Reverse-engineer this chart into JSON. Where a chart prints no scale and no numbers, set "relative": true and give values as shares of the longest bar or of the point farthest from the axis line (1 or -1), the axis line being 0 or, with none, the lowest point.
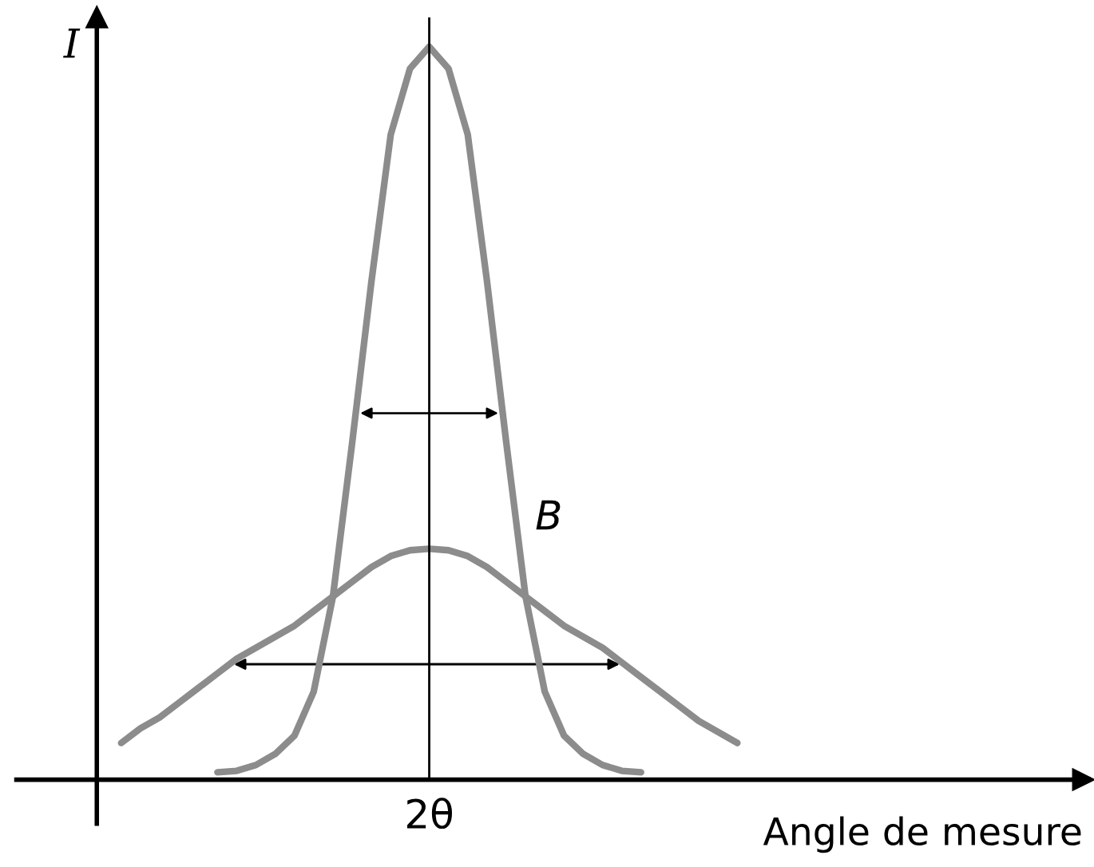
{
  "chart_data": {
    "type": "line",
    "relative": true,
    "xlabel": "Angle de mesure",
    "ylabel": "I",
    "categories": [
      null,
      null,
      null,
      null,
      null,
      null,
      null,
      null,
      null,
      null,
      null,
      null,
      null,
      null,
      null,
      null,
      null,
      null,
      null,
      null,
      null,
      null,
      null,
      null,
      null,
      null,
      null,
      null,
      null,
      null,
      null,
      null,
      null
    ],
    "series": [
      {
        "color": "#8c8c8c",
        "values": [
          null,
          null,
          null,
          null,
          null,
          0.01,
          0.012,
          0.02,
          0.035,
          0.06,
          0.12,
          0.25,
          0.46,
          0.68,
          0.88,
          0.97,
          1.0,
          0.97,
          0.88,
          0.68,
          0.46,
          0.25,
          0.12,
          0.06,
          0.035,
          0.02,
          0.012,
          0.01,
          null,
          null,
          null,
          null,
          null
        ]
      },
      {
        "color": "#8c8c8c",
        "values": [
          0.05,
          0.07,
          0.085,
          0.105,
          0.125,
          0.145,
          0.165,
          0.18,
          0.195,
          0.21,
          0.23,
          0.25,
          0.27,
          0.29,
          0.305,
          0.313,
          0.315,
          0.313,
          0.305,
          0.29,
          0.27,
          0.25,
          0.23,
          0.21,
          0.195,
          0.18,
          0.16,
          0.14,
          0.12,
          0.1,
          0.08,
          0.065,
          0.05
        ]
      }
    ],
    "annotations": [
      "2θ",
      "B"
    ]
  }
}
